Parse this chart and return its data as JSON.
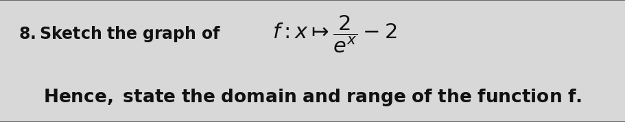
{
  "background_color": "#d8d8d8",
  "border_color": "#555555",
  "prefix_fontsize": 17,
  "math_fontsize": 22,
  "line2_fontsize": 19,
  "text_color": "#111111",
  "fig_width": 9.12,
  "fig_height": 1.79
}
